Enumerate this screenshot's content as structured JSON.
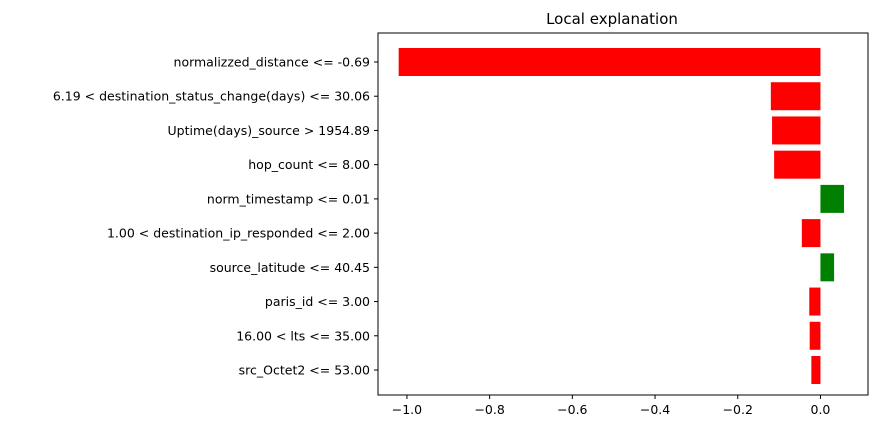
{
  "chart_data": {
    "type": "bar",
    "orientation": "horizontal",
    "title": "Local explanation",
    "xlabel": "",
    "ylabel": "",
    "xlim": [
      -1.07,
      0.115
    ],
    "xticks": [
      -1.0,
      -0.8,
      -0.6,
      -0.4,
      -0.2,
      0.0
    ],
    "xtick_labels": [
      "−1.0",
      "−0.8",
      "−0.6",
      "−0.4",
      "−0.2",
      "0.0"
    ],
    "grid": false,
    "categories": [
      "normalizzed_distance <= -0.69",
      "6.19 < destination_status_change(days) <= 30.06",
      "Uptime(days)_source > 1954.89",
      "hop_count <= 8.00",
      "norm_timestamp <= 0.01",
      "1.00 < destination_ip_responded <= 2.00",
      "source_latitude <= 40.45",
      "paris_id <= 3.00",
      "16.00 < lts <= 35.00",
      "src_Octet2 <= 53.00"
    ],
    "values": [
      -1.02,
      -0.12,
      -0.117,
      -0.112,
      0.057,
      -0.045,
      0.033,
      -0.027,
      -0.026,
      -0.022
    ],
    "colors": {
      "positive": "#008000",
      "negative": "#ff0000"
    }
  }
}
